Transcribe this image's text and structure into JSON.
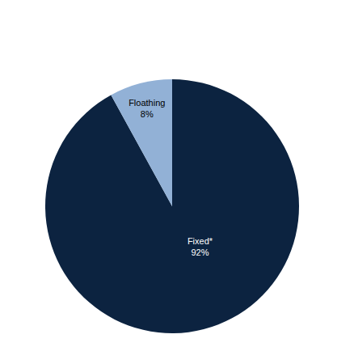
{
  "chart_data": {
    "type": "pie",
    "categories": [
      "Fixed*",
      "Floathing"
    ],
    "values": [
      92,
      8
    ],
    "value_labels": [
      "92%",
      "8%"
    ],
    "colors": [
      "#0c2340",
      "#92b1d6"
    ],
    "data_labels": true
  }
}
